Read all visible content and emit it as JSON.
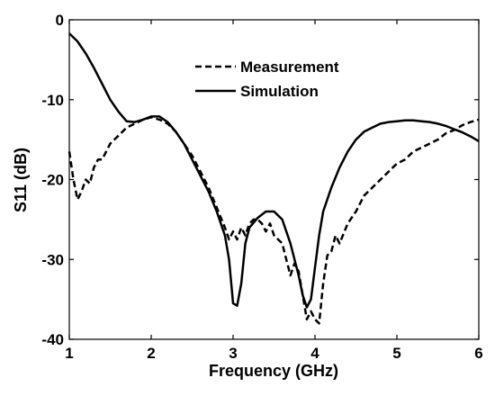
{
  "chart_data": {
    "type": "line",
    "title": "",
    "xlabel": "Frequency (GHz)",
    "ylabel": "S11 (dB)",
    "xlim": [
      1,
      6
    ],
    "ylim": [
      -40,
      0
    ],
    "xticks": [
      1,
      2,
      3,
      4,
      5,
      6
    ],
    "yticks": [
      0,
      -10,
      -20,
      -30,
      -40
    ],
    "grid": false,
    "legend": "top-center",
    "series": [
      {
        "name": "Measurement",
        "style": "dashed",
        "color": "#000000",
        "x": [
          1.0,
          1.05,
          1.1,
          1.15,
          1.2,
          1.25,
          1.3,
          1.35,
          1.4,
          1.5,
          1.6,
          1.7,
          1.8,
          1.9,
          2.0,
          2.1,
          2.2,
          2.3,
          2.4,
          2.5,
          2.6,
          2.7,
          2.8,
          2.9,
          2.95,
          3.0,
          3.05,
          3.1,
          3.15,
          3.2,
          3.25,
          3.3,
          3.35,
          3.4,
          3.45,
          3.5,
          3.55,
          3.6,
          3.65,
          3.7,
          3.75,
          3.8,
          3.85,
          3.9,
          3.95,
          4.0,
          4.05,
          4.1,
          4.15,
          4.2,
          4.25,
          4.3,
          4.4,
          4.5,
          4.6,
          4.7,
          4.8,
          4.9,
          5.0,
          5.1,
          5.2,
          5.3,
          5.4,
          5.5,
          5.6,
          5.7,
          5.8,
          5.9,
          6.0
        ],
        "y": [
          -16.5,
          -20.0,
          -22.5,
          -21.5,
          -20.0,
          -20.5,
          -18.5,
          -17.5,
          -17.5,
          -15.5,
          -14.5,
          -13.5,
          -13.0,
          -12.5,
          -12.2,
          -12.5,
          -13.0,
          -14.0,
          -15.5,
          -17.0,
          -19.0,
          -21.0,
          -23.5,
          -26.0,
          -27.5,
          -26.5,
          -27.5,
          -26.0,
          -27.0,
          -25.5,
          -25.0,
          -25.0,
          -25.5,
          -26.5,
          -25.5,
          -27.0,
          -27.5,
          -28.0,
          -30.0,
          -32.0,
          -30.5,
          -31.5,
          -34.5,
          -37.5,
          -36.5,
          -37.5,
          -38.0,
          -33.0,
          -29.5,
          -29.0,
          -27.0,
          -28.0,
          -25.5,
          -24.0,
          -22.0,
          -21.0,
          -20.0,
          -19.0,
          -18.0,
          -17.5,
          -16.5,
          -16.0,
          -15.5,
          -15.0,
          -14.2,
          -13.8,
          -13.2,
          -12.8,
          -12.5
        ]
      },
      {
        "name": "Simulation",
        "style": "solid",
        "color": "#000000",
        "x": [
          1.0,
          1.1,
          1.2,
          1.3,
          1.4,
          1.5,
          1.6,
          1.7,
          1.8,
          1.9,
          2.0,
          2.1,
          2.2,
          2.3,
          2.4,
          2.5,
          2.6,
          2.7,
          2.8,
          2.9,
          2.95,
          3.0,
          3.05,
          3.1,
          3.15,
          3.2,
          3.3,
          3.4,
          3.5,
          3.6,
          3.7,
          3.8,
          3.85,
          3.9,
          3.95,
          4.0,
          4.05,
          4.1,
          4.2,
          4.3,
          4.4,
          4.5,
          4.6,
          4.7,
          4.8,
          4.9,
          5.0,
          5.1,
          5.2,
          5.3,
          5.4,
          5.5,
          5.6,
          5.7,
          5.8,
          5.9,
          6.0
        ],
        "y": [
          -1.7,
          -2.7,
          -4.2,
          -6.0,
          -8.0,
          -10.0,
          -11.5,
          -12.7,
          -12.8,
          -12.5,
          -12.1,
          -12.1,
          -12.8,
          -14.0,
          -15.5,
          -17.5,
          -19.5,
          -21.5,
          -24.0,
          -27.0,
          -30.0,
          -35.5,
          -35.8,
          -33.0,
          -28.0,
          -26.0,
          -24.8,
          -24.0,
          -24.0,
          -25.0,
          -28.0,
          -32.0,
          -34.5,
          -36.0,
          -35.0,
          -31.0,
          -27.0,
          -24.0,
          -21.0,
          -18.5,
          -16.5,
          -15.0,
          -14.0,
          -13.5,
          -13.0,
          -12.8,
          -12.7,
          -12.6,
          -12.6,
          -12.7,
          -12.8,
          -13.0,
          -13.3,
          -13.7,
          -14.1,
          -14.6,
          -15.2
        ]
      }
    ]
  }
}
